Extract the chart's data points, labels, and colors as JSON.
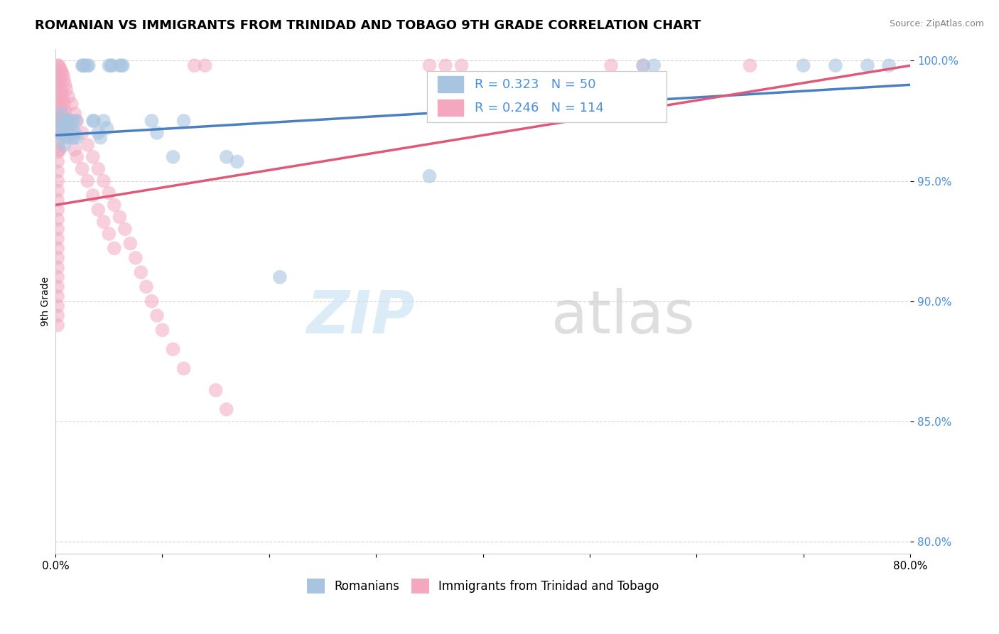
{
  "title": "ROMANIAN VS IMMIGRANTS FROM TRINIDAD AND TOBAGO 9TH GRADE CORRELATION CHART",
  "source": "Source: ZipAtlas.com",
  "ylabel": "9th Grade",
  "xlim": [
    0.0,
    0.8
  ],
  "ylim": [
    0.795,
    1.005
  ],
  "xticks": [
    0.0,
    0.1,
    0.2,
    0.3,
    0.4,
    0.5,
    0.6,
    0.7,
    0.8
  ],
  "xticklabels": [
    "0.0%",
    "",
    "",
    "",
    "",
    "",
    "",
    "",
    "80.0%"
  ],
  "yticks": [
    0.8,
    0.85,
    0.9,
    0.95,
    1.0
  ],
  "yticklabels": [
    "80.0%",
    "85.0%",
    "90.0%",
    "95.0%",
    "100.0%"
  ],
  "legend_blue_r": "0.323",
  "legend_blue_n": "50",
  "legend_pink_r": "0.246",
  "legend_pink_n": "114",
  "blue_color": "#a8c4e0",
  "pink_color": "#f4a8c0",
  "blue_line_color": "#4a7fc1",
  "pink_line_color": "#e05878",
  "title_fontsize": 13,
  "axis_label_fontsize": 10,
  "tick_fontsize": 11,
  "blue_scatter": [
    [
      0.003,
      0.972
    ],
    [
      0.004,
      0.975
    ],
    [
      0.005,
      0.968
    ],
    [
      0.006,
      0.978
    ],
    [
      0.007,
      0.97
    ],
    [
      0.008,
      0.965
    ],
    [
      0.009,
      0.972
    ],
    [
      0.01,
      0.975
    ],
    [
      0.011,
      0.968
    ],
    [
      0.012,
      0.975
    ],
    [
      0.013,
      0.97
    ],
    [
      0.015,
      0.972
    ],
    [
      0.016,
      0.975
    ],
    [
      0.017,
      0.968
    ],
    [
      0.018,
      0.97
    ],
    [
      0.019,
      0.975
    ],
    [
      0.02,
      0.968
    ],
    [
      0.025,
      0.998
    ],
    [
      0.026,
      0.998
    ],
    [
      0.027,
      0.998
    ],
    [
      0.03,
      0.998
    ],
    [
      0.031,
      0.998
    ],
    [
      0.035,
      0.975
    ],
    [
      0.036,
      0.975
    ],
    [
      0.04,
      0.97
    ],
    [
      0.042,
      0.968
    ],
    [
      0.045,
      0.975
    ],
    [
      0.048,
      0.972
    ],
    [
      0.05,
      0.998
    ],
    [
      0.052,
      0.998
    ],
    [
      0.053,
      0.998
    ],
    [
      0.06,
      0.998
    ],
    [
      0.062,
      0.998
    ],
    [
      0.063,
      0.998
    ],
    [
      0.09,
      0.975
    ],
    [
      0.095,
      0.97
    ],
    [
      0.11,
      0.96
    ],
    [
      0.12,
      0.975
    ],
    [
      0.16,
      0.96
    ],
    [
      0.17,
      0.958
    ],
    [
      0.21,
      0.91
    ],
    [
      0.35,
      0.952
    ],
    [
      0.55,
      0.998
    ],
    [
      0.56,
      0.998
    ],
    [
      0.7,
      0.998
    ],
    [
      0.73,
      0.998
    ],
    [
      0.76,
      0.998
    ],
    [
      0.78,
      0.998
    ]
  ],
  "pink_scatter": [
    [
      0.002,
      0.998
    ],
    [
      0.002,
      0.994
    ],
    [
      0.002,
      0.99
    ],
    [
      0.002,
      0.986
    ],
    [
      0.002,
      0.982
    ],
    [
      0.002,
      0.978
    ],
    [
      0.002,
      0.974
    ],
    [
      0.002,
      0.97
    ],
    [
      0.002,
      0.966
    ],
    [
      0.002,
      0.962
    ],
    [
      0.002,
      0.958
    ],
    [
      0.002,
      0.954
    ],
    [
      0.002,
      0.95
    ],
    [
      0.002,
      0.946
    ],
    [
      0.002,
      0.942
    ],
    [
      0.002,
      0.938
    ],
    [
      0.002,
      0.934
    ],
    [
      0.002,
      0.93
    ],
    [
      0.002,
      0.926
    ],
    [
      0.002,
      0.922
    ],
    [
      0.002,
      0.918
    ],
    [
      0.002,
      0.914
    ],
    [
      0.002,
      0.91
    ],
    [
      0.002,
      0.906
    ],
    [
      0.002,
      0.902
    ],
    [
      0.002,
      0.898
    ],
    [
      0.002,
      0.894
    ],
    [
      0.002,
      0.89
    ],
    [
      0.003,
      0.998
    ],
    [
      0.003,
      0.993
    ],
    [
      0.003,
      0.988
    ],
    [
      0.003,
      0.982
    ],
    [
      0.003,
      0.976
    ],
    [
      0.003,
      0.97
    ],
    [
      0.003,
      0.963
    ],
    [
      0.004,
      0.997
    ],
    [
      0.004,
      0.991
    ],
    [
      0.004,
      0.984
    ],
    [
      0.004,
      0.977
    ],
    [
      0.004,
      0.97
    ],
    [
      0.004,
      0.963
    ],
    [
      0.005,
      0.996
    ],
    [
      0.005,
      0.988
    ],
    [
      0.005,
      0.98
    ],
    [
      0.005,
      0.972
    ],
    [
      0.006,
      0.995
    ],
    [
      0.006,
      0.986
    ],
    [
      0.006,
      0.977
    ],
    [
      0.007,
      0.994
    ],
    [
      0.007,
      0.984
    ],
    [
      0.007,
      0.974
    ],
    [
      0.008,
      0.992
    ],
    [
      0.008,
      0.982
    ],
    [
      0.009,
      0.99
    ],
    [
      0.009,
      0.979
    ],
    [
      0.01,
      0.988
    ],
    [
      0.01,
      0.976
    ],
    [
      0.012,
      0.985
    ],
    [
      0.012,
      0.972
    ],
    [
      0.015,
      0.982
    ],
    [
      0.015,
      0.968
    ],
    [
      0.018,
      0.978
    ],
    [
      0.018,
      0.963
    ],
    [
      0.02,
      0.975
    ],
    [
      0.02,
      0.96
    ],
    [
      0.025,
      0.97
    ],
    [
      0.025,
      0.955
    ],
    [
      0.03,
      0.965
    ],
    [
      0.03,
      0.95
    ],
    [
      0.035,
      0.96
    ],
    [
      0.035,
      0.944
    ],
    [
      0.04,
      0.955
    ],
    [
      0.04,
      0.938
    ],
    [
      0.045,
      0.95
    ],
    [
      0.045,
      0.933
    ],
    [
      0.05,
      0.945
    ],
    [
      0.05,
      0.928
    ],
    [
      0.055,
      0.94
    ],
    [
      0.055,
      0.922
    ],
    [
      0.06,
      0.935
    ],
    [
      0.065,
      0.93
    ],
    [
      0.07,
      0.924
    ],
    [
      0.075,
      0.918
    ],
    [
      0.08,
      0.912
    ],
    [
      0.085,
      0.906
    ],
    [
      0.09,
      0.9
    ],
    [
      0.095,
      0.894
    ],
    [
      0.1,
      0.888
    ],
    [
      0.11,
      0.88
    ],
    [
      0.12,
      0.872
    ],
    [
      0.13,
      0.998
    ],
    [
      0.14,
      0.998
    ],
    [
      0.15,
      0.863
    ],
    [
      0.16,
      0.855
    ],
    [
      0.35,
      0.998
    ],
    [
      0.365,
      0.998
    ],
    [
      0.38,
      0.998
    ],
    [
      0.52,
      0.998
    ],
    [
      0.55,
      0.998
    ],
    [
      0.65,
      0.998
    ]
  ],
  "blue_trendline": [
    [
      0.0,
      0.969
    ],
    [
      0.8,
      0.99
    ]
  ],
  "pink_trendline": [
    [
      0.0,
      0.94
    ],
    [
      0.8,
      0.998
    ]
  ]
}
